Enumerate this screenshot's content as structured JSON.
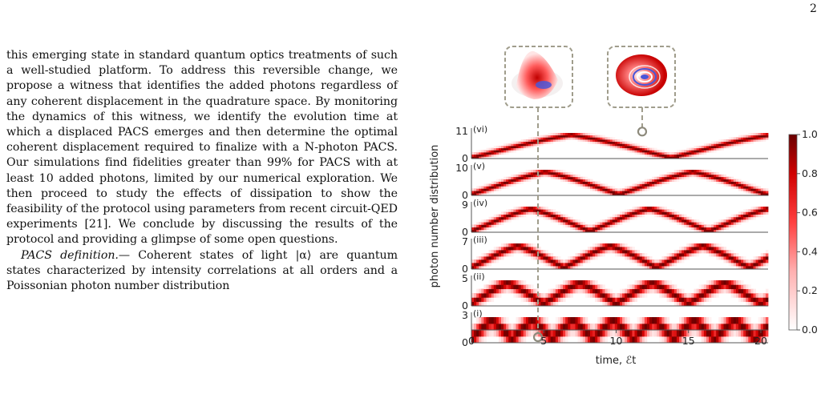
{
  "page": {
    "number": "2"
  },
  "body_text": {
    "paragraph1": "this emerging state in standard quantum optics treatments of such a well-studied platform. To address this reversible change, we propose a witness that identifies the added photons regardless of any coherent displacement in the quadrature space. By monitoring the dynamics of this witness, we identify the evolution time at which a displaced PACS emerges and then determine the optimal coherent displacement required to finalize with a N-photon PACS. Our simulations find fidelities greater than 99% for PACS with at least 10 added photons, limited by our numerical exploration. We then proceed to study the effects of dissipation to show the feasibility of the protocol using parameters from recent circuit-QED experiments [21]. We conclude by discussing the results of the protocol and providing a glimpse of some open questions.",
    "paragraph2_heading": "PACS definition.",
    "paragraph2": "— Coherent states of light |α⟩ are quantum states characterized by intensity correlations at all orders and a Poissonian photon number distribution"
  },
  "chart_data": {
    "type": "heatmap",
    "xlabel": "time, ℰt",
    "ylabel": "photon number distribution",
    "xlim": [
      0,
      20.5
    ],
    "xticks": [
      "0",
      "5",
      "10",
      "15",
      "20"
    ],
    "colorbar": {
      "min": 0.0,
      "max": 1.0,
      "ticks": [
        "0.0",
        "0.2",
        "0.4",
        "0.6",
        "0.8",
        "1.0"
      ],
      "colormap": "white-to-dark-red"
    },
    "panels": [
      {
        "label": "(vi)",
        "y_top": "11",
        "y_bottom": "0",
        "n_max": 11,
        "half_period": 6.9
      },
      {
        "label": "(v)",
        "y_top": "10",
        "y_bottom": "0",
        "n_max": 10,
        "half_period": 5.1
      },
      {
        "label": "(iv)",
        "y_top": "9",
        "y_bottom": "0",
        "n_max": 9,
        "half_period": 4.1
      },
      {
        "label": "(iii)",
        "y_top": "7",
        "y_bottom": "0",
        "n_max": 7,
        "half_period": 3.2
      },
      {
        "label": "(ii)",
        "y_top": "5",
        "y_bottom": "0",
        "n_max": 5,
        "half_period": 2.5
      },
      {
        "label": "(i)",
        "y_top": "3",
        "y_bottom": "0",
        "n_max": 3,
        "half_period": 1.4
      }
    ],
    "markers": [
      {
        "panel": "(i)",
        "time": 4.6,
        "n": 0
      },
      {
        "panel": "(vi)",
        "time": 11.8,
        "n": 11
      }
    ],
    "insets": [
      {
        "name": "wigner-inset-left",
        "linked_time": 4.6
      },
      {
        "name": "wigner-inset-right",
        "linked_time": 11.8
      }
    ],
    "colors": {
      "high": "#7a0000",
      "mid": "#ff2a2a",
      "low": "#ffffff",
      "axis": "#555555",
      "connector": "#a09d8c"
    }
  }
}
